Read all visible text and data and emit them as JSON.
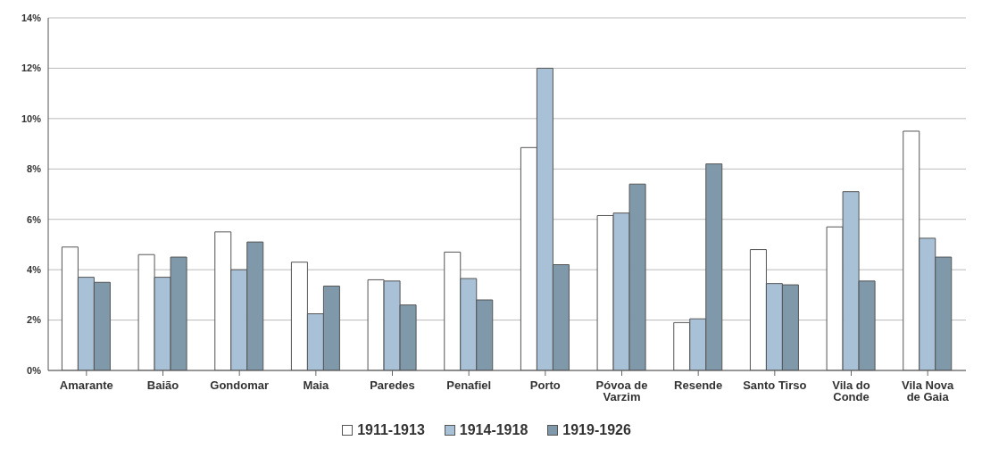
{
  "chart_data": {
    "type": "bar",
    "categories": [
      "Amarante",
      "Baião",
      "Gondomar",
      "Maia",
      "Paredes",
      "Penafiel",
      "Porto",
      "Póvoa de Varzim",
      "Resende",
      "Santo Tirso",
      "Vila do Conde",
      "Vila Nova de Gaia"
    ],
    "series": [
      {
        "name": "1911-1913",
        "color": "#ffffff",
        "values": [
          4.9,
          4.6,
          5.5,
          4.3,
          3.6,
          4.7,
          8.85,
          6.15,
          1.9,
          4.8,
          5.7,
          9.5
        ]
      },
      {
        "name": "1914-1918",
        "color": "#a9c1d6",
        "values": [
          3.7,
          3.7,
          4.0,
          2.25,
          3.55,
          3.65,
          12.0,
          6.25,
          2.05,
          3.45,
          7.1,
          5.25
        ]
      },
      {
        "name": "1919-1926",
        "color": "#7f99ab",
        "values": [
          3.5,
          4.5,
          5.1,
          3.35,
          2.6,
          2.8,
          4.2,
          7.4,
          8.2,
          3.4,
          3.55,
          4.5
        ]
      }
    ],
    "ylim": [
      0,
      14
    ],
    "yticks": [
      {
        "value": 0,
        "label": "0%"
      },
      {
        "value": 2,
        "label": "2%"
      },
      {
        "value": 4,
        "label": "4%"
      },
      {
        "value": 6,
        "label": "6%"
      },
      {
        "value": 8,
        "label": "8%"
      },
      {
        "value": 10,
        "label": "10%"
      },
      {
        "value": 12,
        "label": "12%"
      },
      {
        "value": 14,
        "label": "14%"
      }
    ],
    "grid": "y",
    "legend": "bottom"
  }
}
